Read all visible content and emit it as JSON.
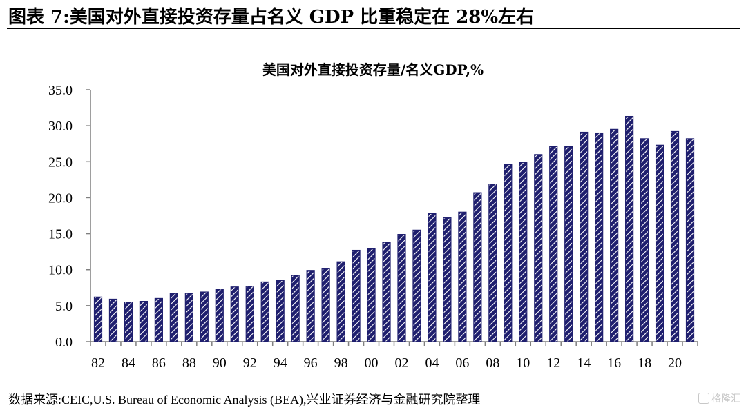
{
  "header": {
    "title": "图表 7:美国对外直接投资存量占名义 GDP 比重稳定在 28%左右"
  },
  "footer": {
    "source": "数据来源:CEIC,U.S. Bureau of Economic Analysis (BEA),兴业证券经济与金融研究院整理",
    "watermark": "格隆汇"
  },
  "colors": {
    "bar_fill": "#1f1f6e",
    "bar_hatch": "#ffffff",
    "axis": "#7f7f7f"
  },
  "chart_data": {
    "type": "bar",
    "title": "美国对外直接投资存量/名义GDP,%",
    "xlabel": "",
    "ylabel": "",
    "ylim": [
      0,
      35
    ],
    "yticks": [
      "0.0",
      "5.0",
      "10.0",
      "15.0",
      "20.0",
      "25.0",
      "30.0",
      "35.0"
    ],
    "grid": false,
    "legend": "none",
    "categories": [
      "82",
      "83",
      "84",
      "85",
      "86",
      "87",
      "88",
      "89",
      "90",
      "91",
      "92",
      "93",
      "94",
      "95",
      "96",
      "97",
      "98",
      "99",
      "00",
      "01",
      "02",
      "03",
      "04",
      "05",
      "06",
      "07",
      "08",
      "09",
      "10",
      "11",
      "12",
      "13",
      "14",
      "15",
      "16",
      "17",
      "18",
      "19",
      "20",
      "21"
    ],
    "xtick_labels": [
      "82",
      "",
      "84",
      "",
      "86",
      "",
      "88",
      "",
      "90",
      "",
      "92",
      "",
      "94",
      "",
      "96",
      "",
      "98",
      "",
      "00",
      "",
      "02",
      "",
      "04",
      "",
      "06",
      "",
      "08",
      "",
      "10",
      "",
      "12",
      "",
      "14",
      "",
      "16",
      "",
      "18",
      "",
      "20",
      ""
    ],
    "values": [
      6.2,
      5.9,
      5.5,
      5.6,
      6.0,
      6.7,
      6.7,
      6.9,
      7.3,
      7.6,
      7.7,
      8.3,
      8.5,
      9.2,
      9.9,
      10.2,
      11.1,
      12.7,
      12.9,
      13.8,
      14.9,
      15.5,
      17.8,
      17.2,
      18.0,
      20.7,
      21.9,
      24.6,
      24.9,
      26.0,
      27.1,
      27.1,
      29.1,
      29.0,
      29.5,
      31.3,
      28.2,
      27.3,
      29.2,
      28.2
    ]
  }
}
